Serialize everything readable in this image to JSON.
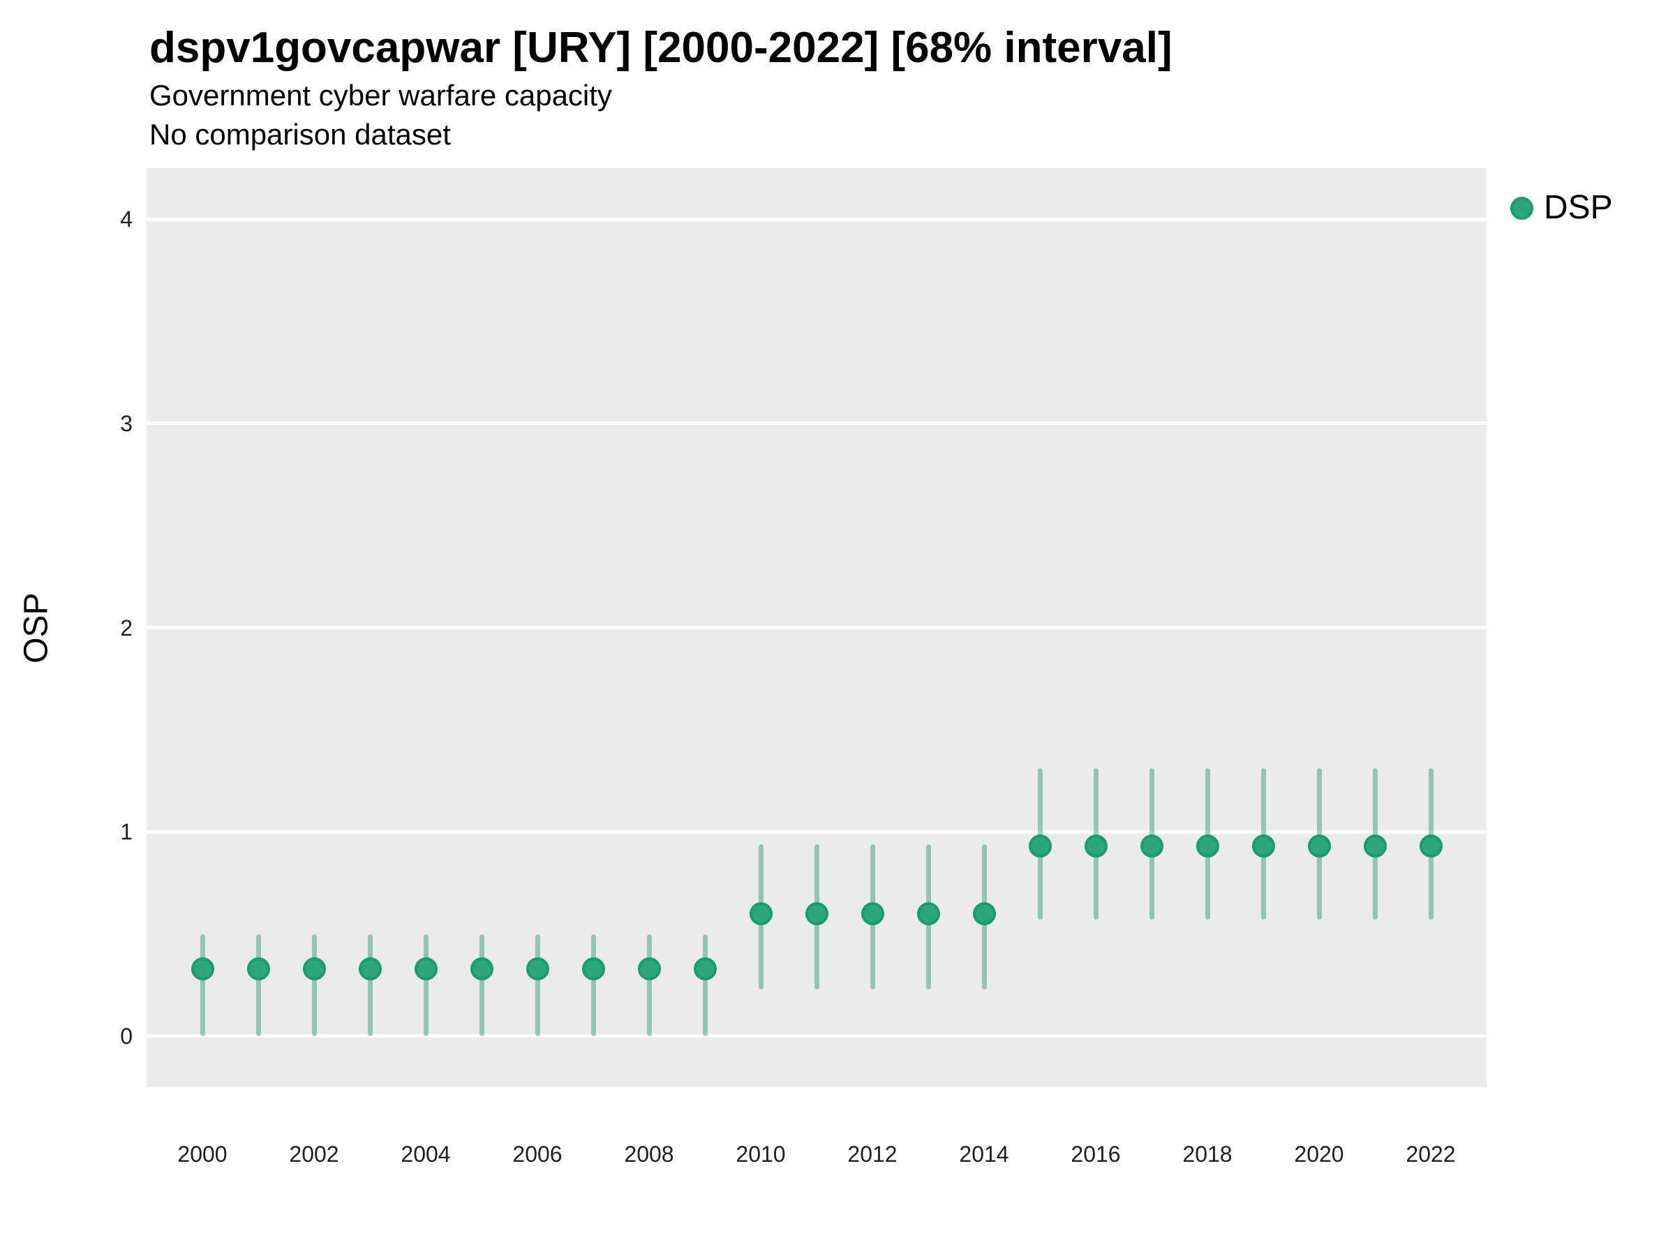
{
  "header": {
    "title": "dspv1govcapwar [URY] [2000-2022] [68% interval]",
    "subtitle": "Government cyber warfare capacity",
    "note": "No comparison dataset"
  },
  "legend": {
    "items": [
      {
        "label": "DSP"
      }
    ]
  },
  "colors": {
    "point_fill": "#2aa87c",
    "point_stroke": "#1b9c6d",
    "interval": "rgba(27,158,119,0.45)",
    "panel_bg": "#ebebeb",
    "gridline": "#ffffff"
  },
  "chart_data": {
    "type": "scatter",
    "title": "dspv1govcapwar [URY] [2000-2022] [68% interval]",
    "subtitle": "Government cyber warfare capacity",
    "note": "No comparison dataset",
    "interval": "68%",
    "xlabel": "",
    "ylabel": "OSP",
    "grid": "major-horizontal",
    "legend_position": "right",
    "xlim": [
      1999,
      2023
    ],
    "ylim": [
      -0.25,
      4.25
    ],
    "x_ticks": [
      2000,
      2002,
      2004,
      2006,
      2008,
      2010,
      2012,
      2014,
      2016,
      2018,
      2020,
      2022
    ],
    "y_ticks": [
      0,
      1,
      2,
      3,
      4
    ],
    "series": [
      {
        "name": "DSP",
        "points": [
          {
            "year": 2000,
            "value": 0.33,
            "lo": 0.0,
            "hi": 0.5
          },
          {
            "year": 2001,
            "value": 0.33,
            "lo": 0.0,
            "hi": 0.5
          },
          {
            "year": 2002,
            "value": 0.33,
            "lo": 0.0,
            "hi": 0.5
          },
          {
            "year": 2003,
            "value": 0.33,
            "lo": 0.0,
            "hi": 0.5
          },
          {
            "year": 2004,
            "value": 0.33,
            "lo": 0.0,
            "hi": 0.5
          },
          {
            "year": 2005,
            "value": 0.33,
            "lo": 0.0,
            "hi": 0.5
          },
          {
            "year": 2006,
            "value": 0.33,
            "lo": 0.0,
            "hi": 0.5
          },
          {
            "year": 2007,
            "value": 0.33,
            "lo": 0.0,
            "hi": 0.5
          },
          {
            "year": 2008,
            "value": 0.33,
            "lo": 0.0,
            "hi": 0.5
          },
          {
            "year": 2009,
            "value": 0.33,
            "lo": 0.0,
            "hi": 0.5
          },
          {
            "year": 2010,
            "value": 0.6,
            "lo": 0.23,
            "hi": 0.94
          },
          {
            "year": 2011,
            "value": 0.6,
            "lo": 0.23,
            "hi": 0.94
          },
          {
            "year": 2012,
            "value": 0.6,
            "lo": 0.23,
            "hi": 0.94
          },
          {
            "year": 2013,
            "value": 0.6,
            "lo": 0.23,
            "hi": 0.94
          },
          {
            "year": 2014,
            "value": 0.6,
            "lo": 0.23,
            "hi": 0.94
          },
          {
            "year": 2015,
            "value": 0.93,
            "lo": 0.57,
            "hi": 1.31
          },
          {
            "year": 2016,
            "value": 0.93,
            "lo": 0.57,
            "hi": 1.31
          },
          {
            "year": 2017,
            "value": 0.93,
            "lo": 0.57,
            "hi": 1.31
          },
          {
            "year": 2018,
            "value": 0.93,
            "lo": 0.57,
            "hi": 1.31
          },
          {
            "year": 2019,
            "value": 0.93,
            "lo": 0.57,
            "hi": 1.31
          },
          {
            "year": 2020,
            "value": 0.93,
            "lo": 0.57,
            "hi": 1.31
          },
          {
            "year": 2021,
            "value": 0.93,
            "lo": 0.57,
            "hi": 1.31
          },
          {
            "year": 2022,
            "value": 0.93,
            "lo": 0.57,
            "hi": 1.31
          }
        ]
      }
    ]
  }
}
